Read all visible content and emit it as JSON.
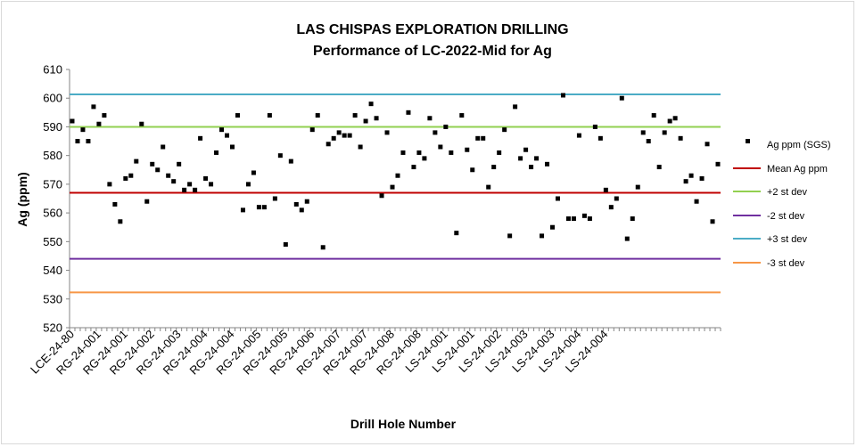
{
  "chart_data": {
    "type": "scatter",
    "title": "LAS CHISPAS EXPLORATION DRILLING",
    "subtitle": "Performance of LC-2022-Mid for Ag",
    "xlabel": "Drill Hole Number",
    "ylabel": "Ag (ppm)",
    "ylim": [
      520,
      610
    ],
    "y_ticks": [
      "520",
      "530",
      "540",
      "550",
      "560",
      "570",
      "580",
      "590",
      "600",
      "610"
    ],
    "x_tick_labels": [
      "LCE-24-80",
      "RG-24-001",
      "RG-24-001",
      "RG-24-002",
      "RG-24-003",
      "RG-24-004",
      "RG-24-004",
      "RG-24-005",
      "RG-24-005",
      "RG-24-006",
      "RG-24-007",
      "RG-24-007",
      "RG-24-008",
      "RG-24-008",
      "LS-24-001",
      "LS-24-001",
      "LS-24-002",
      "LS-24-003",
      "LS-24-003",
      "LS-24-004",
      "LS-24-004"
    ],
    "x_tick_every": 5,
    "grid": false,
    "legend_position": "right",
    "series": [
      {
        "name": "Ag ppm (SGS)",
        "kind": "points",
        "color": "#000000",
        "values": [
          592,
          585,
          589,
          585,
          597,
          591,
          594,
          570,
          563,
          557,
          572,
          573,
          578,
          591,
          564,
          577,
          575,
          583,
          573,
          571,
          577,
          568,
          570,
          568,
          586,
          572,
          570,
          581,
          589,
          587,
          583,
          594,
          561,
          570,
          574,
          562,
          562,
          594,
          565,
          580,
          549,
          578,
          563,
          561,
          564,
          589,
          594,
          548,
          584,
          586,
          588,
          587,
          587,
          594,
          583,
          592,
          598,
          593,
          566,
          588,
          569,
          573,
          581,
          595,
          576,
          581,
          579,
          593,
          588,
          583,
          590,
          581,
          553,
          594,
          582,
          575,
          586,
          586,
          569,
          576,
          581,
          589,
          552,
          597,
          579,
          582,
          576,
          579,
          552,
          577,
          555,
          565,
          601,
          558,
          558,
          587,
          559,
          558,
          590,
          586,
          568,
          562,
          565,
          600,
          551,
          558,
          569,
          588,
          585,
          594,
          576,
          588,
          592,
          593,
          586,
          571,
          573,
          564,
          572,
          584,
          557,
          577
        ]
      },
      {
        "name": "Mean Ag ppm",
        "kind": "line",
        "value": 567,
        "color": "#c00000"
      },
      {
        "name": "+2 st dev",
        "kind": "line",
        "value": 590,
        "color": "#92d050"
      },
      {
        "name": "-2 st dev",
        "kind": "line",
        "value": 544,
        "color": "#7030a0"
      },
      {
        "name": "+3 st dev",
        "kind": "line",
        "value": 601.3,
        "color": "#4bacc6"
      },
      {
        "name": "-3 st dev",
        "kind": "line",
        "value": 532.3,
        "color": "#f79646"
      }
    ]
  }
}
